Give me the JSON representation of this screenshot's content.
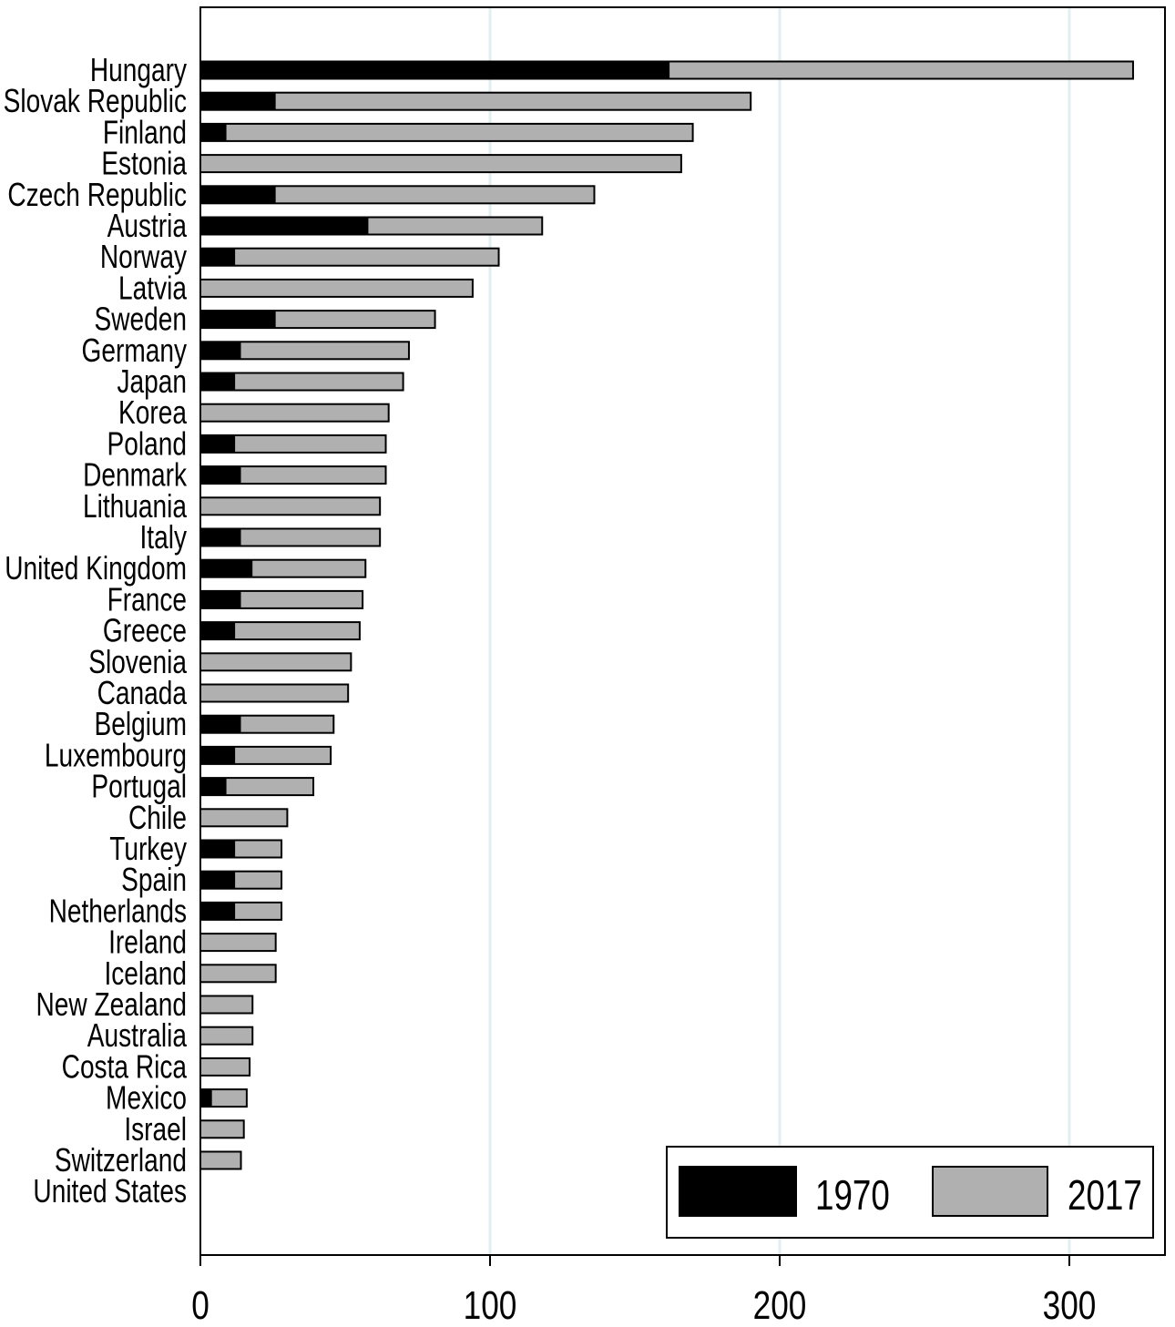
{
  "chart_data": {
    "type": "bar",
    "orientation": "horizontal",
    "stacked": true,
    "categories": [
      "Hungary",
      "Slovak Republic",
      "Finland",
      "Estonia",
      "Czech Republic",
      "Austria",
      "Norway",
      "Latvia",
      "Sweden",
      "Germany",
      "Japan",
      "Korea",
      "Poland",
      "Denmark",
      "Lithuania",
      "Italy",
      "United Kingdom",
      "France",
      "Greece",
      "Slovenia",
      "Canada",
      "Belgium",
      "Luxembourg",
      "Portugal",
      "Chile",
      "Turkey",
      "Spain",
      "Netherlands",
      "Ireland",
      "Iceland",
      "New Zealand",
      "Australia",
      "Costa Rica",
      "Mexico",
      "Israel",
      "Switzerland",
      "United States"
    ],
    "series": [
      {
        "name": "1970",
        "color": "#000000",
        "values": [
          162,
          26,
          9,
          0,
          26,
          58,
          12,
          0,
          26,
          14,
          12,
          0,
          12,
          14,
          0,
          14,
          18,
          14,
          12,
          0,
          0,
          14,
          12,
          9,
          0,
          12,
          12,
          12,
          0,
          0,
          0,
          0,
          0,
          4,
          0,
          0,
          0
        ]
      },
      {
        "name": "2017",
        "color": "#b0b0b0",
        "values": [
          160,
          164,
          161,
          166,
          110,
          60,
          91,
          94,
          55,
          58,
          58,
          65,
          52,
          50,
          62,
          48,
          39,
          42,
          43,
          52,
          51,
          32,
          33,
          30,
          30,
          16,
          16,
          16,
          26,
          26,
          18,
          18,
          17,
          12,
          15,
          14,
          0
        ]
      }
    ],
    "xlim": [
      0,
      332
    ],
    "xticks": [
      "0",
      "100",
      "200",
      "300"
    ],
    "grid": true,
    "legend_position": "bottom-right",
    "title": "",
    "xlabel": "",
    "ylabel": ""
  }
}
